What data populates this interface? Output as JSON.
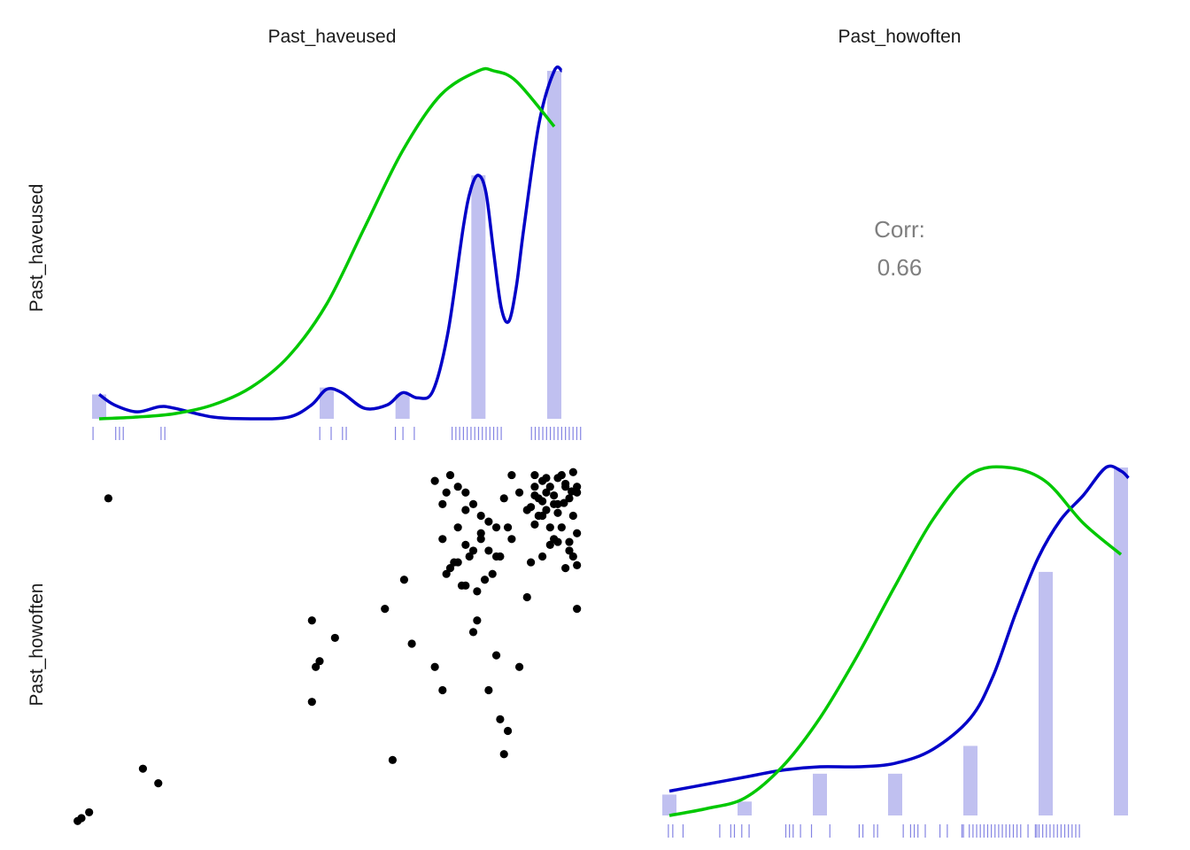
{
  "variables": [
    "Past_haveused",
    "Past_howoften"
  ],
  "colors": {
    "bar": "#c0c0f0",
    "density": "#0000c8",
    "normal": "#00c800",
    "point": "#000000",
    "rug": "#6666dd",
    "corr_text": "#7f7f7f",
    "background": "#ffffff"
  },
  "chart_data": {
    "type": "scatter-matrix",
    "panels": {
      "upper_right": {
        "type": "text",
        "label": "Corr:",
        "value": "0.66"
      },
      "diag_haveused": {
        "type": "bar+density",
        "bar_x": [
          1,
          4,
          5,
          6,
          7
        ],
        "bar_heights": [
          0.07,
          0.09,
          0.07,
          0.7,
          1.0
        ],
        "density_x": [
          1,
          1.2,
          1.5,
          1.8,
          2.0,
          2.5,
          3.0,
          3.5,
          3.8,
          4.0,
          4.2,
          4.5,
          4.8,
          5.0,
          5.2,
          5.4,
          5.6,
          5.8,
          5.9,
          6.0,
          6.1,
          6.2,
          6.3,
          6.4,
          6.5,
          6.6,
          6.8,
          7.0,
          7.1
        ],
        "density_y": [
          0.07,
          0.04,
          0.02,
          0.035,
          0.03,
          0.005,
          0.0,
          0.005,
          0.04,
          0.085,
          0.075,
          0.03,
          0.04,
          0.075,
          0.06,
          0.08,
          0.25,
          0.55,
          0.66,
          0.7,
          0.65,
          0.48,
          0.32,
          0.28,
          0.38,
          0.55,
          0.85,
          1.0,
          1.0
        ],
        "normal_x": [
          1,
          1.5,
          2,
          2.5,
          3,
          3.5,
          4,
          4.5,
          5,
          5.5,
          6,
          6.2,
          6.5,
          7
        ],
        "normal_y": [
          0.0,
          0.005,
          0.015,
          0.04,
          0.09,
          0.18,
          0.33,
          0.55,
          0.77,
          0.93,
          1.0,
          1.0,
          0.97,
          0.84
        ],
        "rug": [
          1.0,
          1.3,
          1.35,
          1.4,
          1.9,
          1.95,
          4.0,
          4.15,
          4.3,
          4.35,
          5.0,
          5.1,
          5.25,
          5.75,
          5.8,
          5.85,
          5.9,
          5.95,
          6.0,
          6.05,
          6.1,
          6.15,
          6.2,
          6.25,
          6.3,
          6.35,
          6.4,
          6.8,
          6.85,
          6.9,
          6.95,
          7.0,
          7.05,
          7.1,
          7.15,
          7.2,
          7.25,
          7.3,
          7.35,
          7.4,
          7.45
        ]
      },
      "diag_howoften": {
        "type": "bar+density",
        "bar_x": [
          1,
          2,
          3,
          4,
          5,
          6,
          7
        ],
        "bar_heights": [
          0.06,
          0.04,
          0.12,
          0.12,
          0.2,
          0.7,
          1.0
        ],
        "density_x": [
          1,
          1.5,
          2,
          2.5,
          3,
          3.5,
          4,
          4.5,
          5,
          5.3,
          5.6,
          5.9,
          6.2,
          6.5,
          6.8,
          7.0,
          7.1
        ],
        "density_y": [
          0.07,
          0.09,
          0.11,
          0.13,
          0.14,
          0.14,
          0.15,
          0.19,
          0.28,
          0.4,
          0.58,
          0.74,
          0.85,
          0.92,
          1.0,
          0.99,
          0.97
        ],
        "normal_x": [
          1,
          1.5,
          2,
          2.5,
          3,
          3.5,
          4,
          4.5,
          5,
          5.5,
          6,
          6.5,
          7
        ],
        "normal_y": [
          0.0,
          0.02,
          0.05,
          0.14,
          0.28,
          0.46,
          0.66,
          0.85,
          0.98,
          1.0,
          0.96,
          0.84,
          0.75
        ],
        "rug": [
          1.0,
          1.06,
          1.2,
          1.7,
          1.85,
          1.9,
          2.0,
          2.1,
          2.6,
          2.65,
          2.7,
          2.8,
          2.95,
          3.2,
          3.6,
          3.65,
          3.8,
          3.85,
          4.2,
          4.3,
          4.35,
          4.4,
          4.5,
          4.7,
          4.8,
          5.0,
          5.02,
          5.1,
          5.15,
          5.2,
          5.25,
          5.3,
          5.35,
          5.4,
          5.45,
          5.5,
          5.55,
          5.6,
          5.65,
          5.7,
          5.75,
          5.8,
          5.9,
          6.0,
          6.02,
          6.05,
          6.1,
          6.15,
          6.2,
          6.25,
          6.3,
          6.35,
          6.4,
          6.45,
          6.5,
          6.55,
          6.6
        ]
      },
      "scatter": {
        "x_name": "Past_haveused",
        "y_name": "Past_howoften",
        "points": [
          [
            1.0,
            1.0
          ],
          [
            1.1,
            1.1
          ],
          [
            0.95,
            0.95
          ],
          [
            1.35,
            6.5
          ],
          [
            1.8,
            1.85
          ],
          [
            2.0,
            1.6
          ],
          [
            4.0,
            4.4
          ],
          [
            4.05,
            3.6
          ],
          [
            4.0,
            3.0
          ],
          [
            4.1,
            3.7
          ],
          [
            4.3,
            4.1
          ],
          [
            4.95,
            4.6
          ],
          [
            5.05,
            2.0
          ],
          [
            5.2,
            5.1
          ],
          [
            5.3,
            4.0
          ],
          [
            5.6,
            3.6
          ],
          [
            5.7,
            3.2
          ],
          [
            5.7,
            6.4
          ],
          [
            5.75,
            6.6
          ],
          [
            5.8,
            5.3
          ],
          [
            5.85,
            5.4
          ],
          [
            5.9,
            5.4
          ],
          [
            6.0,
            5.0
          ],
          [
            6.0,
            6.3
          ],
          [
            6.05,
            5.5
          ],
          [
            6.1,
            5.6
          ],
          [
            6.1,
            4.2
          ],
          [
            6.15,
            4.4
          ],
          [
            6.2,
            6.2
          ],
          [
            6.25,
            5.1
          ],
          [
            6.3,
            3.2
          ],
          [
            6.4,
            3.8
          ],
          [
            6.45,
            2.7
          ],
          [
            6.5,
            2.1
          ],
          [
            6.55,
            2.5
          ],
          [
            6.6,
            5.8
          ],
          [
            6.7,
            3.6
          ],
          [
            6.8,
            4.8
          ],
          [
            6.85,
            5.4
          ],
          [
            6.9,
            6.7
          ],
          [
            6.95,
            6.5
          ],
          [
            7.0,
            6.2
          ],
          [
            5.6,
            6.8
          ],
          [
            5.8,
            6.9
          ],
          [
            5.9,
            6.7
          ],
          [
            6.0,
            6.6
          ],
          [
            6.1,
            6.4
          ],
          [
            6.2,
            5.9
          ],
          [
            6.3,
            6.1
          ],
          [
            6.4,
            5.5
          ],
          [
            6.5,
            6.5
          ],
          [
            6.6,
            6.9
          ],
          [
            6.7,
            6.6
          ],
          [
            6.8,
            6.3
          ],
          [
            6.9,
            6.9
          ],
          [
            7.0,
            6.8
          ],
          [
            7.05,
            6.6
          ],
          [
            7.1,
            6.0
          ],
          [
            7.15,
            5.8
          ],
          [
            7.2,
            6.4
          ],
          [
            7.25,
            6.9
          ],
          [
            7.3,
            6.7
          ],
          [
            7.35,
            6.5
          ],
          [
            7.4,
            6.2
          ],
          [
            7.45,
            5.9
          ],
          [
            6.9,
            6.55
          ],
          [
            7.0,
            6.45
          ],
          [
            7.1,
            6.7
          ],
          [
            7.2,
            6.85
          ],
          [
            7.3,
            6.75
          ],
          [
            7.4,
            6.95
          ],
          [
            7.45,
            6.6
          ],
          [
            6.95,
            6.2
          ],
          [
            7.05,
            6.3
          ],
          [
            7.15,
            6.4
          ],
          [
            7.25,
            6.0
          ],
          [
            7.35,
            5.6
          ],
          [
            7.45,
            5.35
          ],
          [
            7.4,
            5.5
          ],
          [
            7.3,
            5.3
          ],
          [
            7.2,
            5.75
          ],
          [
            7.1,
            5.7
          ],
          [
            7.0,
            5.5
          ],
          [
            6.9,
            6.05
          ],
          [
            6.85,
            6.35
          ],
          [
            7.05,
            6.85
          ],
          [
            7.15,
            6.55
          ],
          [
            7.28,
            6.42
          ],
          [
            7.38,
            6.62
          ],
          [
            5.9,
            6.0
          ],
          [
            6.0,
            5.7
          ],
          [
            6.2,
            5.8
          ],
          [
            6.3,
            5.6
          ],
          [
            6.4,
            6.0
          ],
          [
            5.7,
            5.8
          ],
          [
            5.75,
            5.2
          ],
          [
            5.95,
            5.0
          ],
          [
            6.15,
            4.9
          ],
          [
            6.35,
            5.2
          ],
          [
            6.45,
            5.5
          ],
          [
            6.55,
            6.0
          ],
          [
            7.35,
            5.75
          ],
          [
            7.45,
            6.7
          ],
          [
            7.2,
            6.25
          ],
          [
            7.45,
            4.6
          ]
        ]
      }
    }
  }
}
